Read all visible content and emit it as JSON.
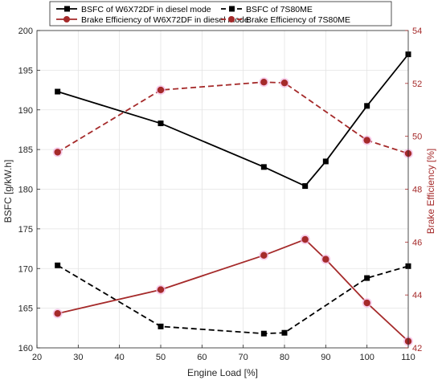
{
  "chart_data": {
    "type": "line",
    "xlabel": "Engine Load [%]",
    "ylabel_left": "BSFC [g/kW.h]",
    "ylabel_right": "Brake Efficiency [%]",
    "xlim": [
      20,
      110
    ],
    "ylim_left": [
      160,
      200
    ],
    "ylim_right": [
      42,
      54
    ],
    "x_ticks": [
      "20",
      "30",
      "40",
      "50",
      "60",
      "70",
      "80",
      "90",
      "100",
      "110"
    ],
    "y_left_ticks": [
      "160",
      "165",
      "170",
      "175",
      "180",
      "185",
      "190",
      "195",
      "200"
    ],
    "y_right_ticks": [
      "42",
      "44",
      "46",
      "48",
      "50",
      "52",
      "54"
    ],
    "grid": true,
    "legend_position": "top",
    "series": [
      {
        "name": "BSFC of W6X72DF in diesel mode",
        "axis": "left",
        "color": "#000000",
        "line_style": "solid",
        "marker": "square",
        "x": [
          25,
          50,
          75,
          85,
          90,
          100,
          110
        ],
        "y": [
          192.3,
          188.3,
          182.8,
          180.4,
          183.5,
          190.5,
          197.0
        ]
      },
      {
        "name": "BSFC of 7S80ME",
        "axis": "left",
        "color": "#000000",
        "line_style": "dashed",
        "marker": "square",
        "x": [
          25,
          50,
          75,
          80,
          100,
          110
        ],
        "y": [
          170.4,
          162.7,
          161.8,
          161.9,
          168.8,
          170.3
        ]
      },
      {
        "name": "Brake Efficiency of W6X72DF in diesel mode",
        "axis": "right",
        "color": "#a52a2a",
        "line_style": "solid",
        "marker": "circle",
        "x": [
          25,
          50,
          75,
          85,
          90,
          100,
          110
        ],
        "y": [
          43.3,
          44.2,
          45.5,
          46.1,
          45.35,
          43.7,
          42.25
        ]
      },
      {
        "name": "Brake Efficiency of 7S80ME",
        "axis": "right",
        "color": "#a52a2a",
        "line_style": "dashed",
        "marker": "circle",
        "x": [
          25,
          50,
          75,
          80,
          100,
          110
        ],
        "y": [
          49.4,
          51.75,
          52.05,
          52.02,
          49.85,
          49.35
        ]
      }
    ]
  }
}
